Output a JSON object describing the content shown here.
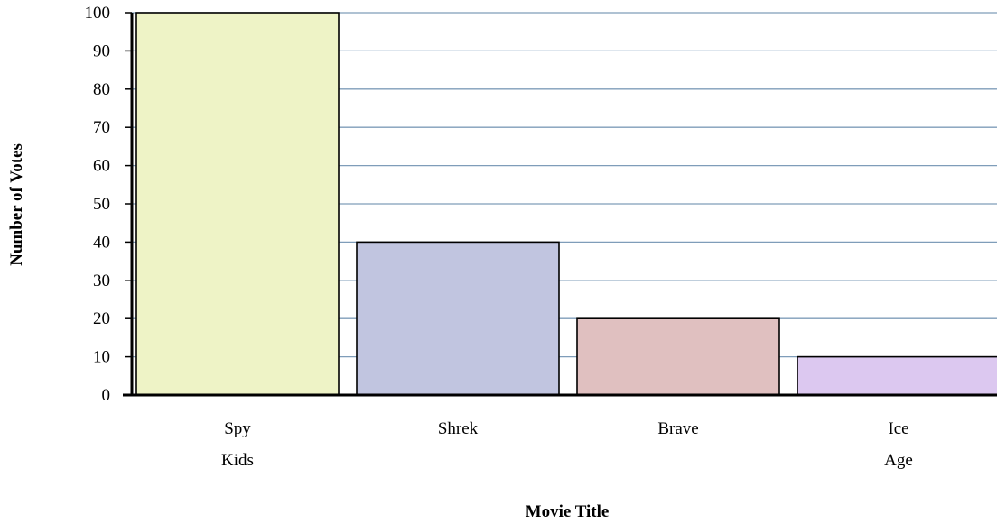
{
  "chart_data": {
    "type": "bar",
    "title": "",
    "xlabel": "Movie Title",
    "ylabel": "Number of Votes",
    "ylim": [
      0,
      100
    ],
    "yticks": [
      0,
      10,
      20,
      30,
      40,
      50,
      60,
      70,
      80,
      90,
      100
    ],
    "grid": true,
    "legend": "none",
    "categories": [
      [
        "Spy",
        "Kids"
      ],
      [
        "Shrek"
      ],
      [
        "Brave"
      ],
      [
        "Ice",
        "Age"
      ]
    ],
    "values": [
      100,
      40,
      20,
      10
    ],
    "colors": [
      "#eef3c6",
      "#c1c5e0",
      "#e0c0c0",
      "#dcc8f0"
    ],
    "grid_color": "#7f9db9"
  }
}
